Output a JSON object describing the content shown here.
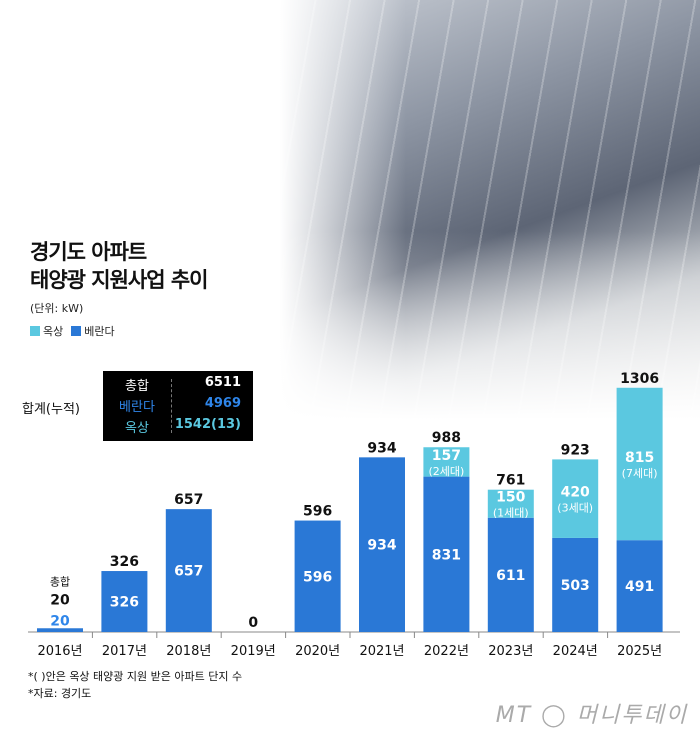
{
  "title_lines": [
    "경기도 아파트",
    "태양광 지원사업 추이"
  ],
  "unit": "(단위: kW)",
  "legend": [
    {
      "label": "옥상",
      "color": "#5bc8e0"
    },
    {
      "label": "베란다",
      "color": "#2a78d6"
    }
  ],
  "cumulative": {
    "label": "합계(누적)",
    "rows": [
      {
        "key": "총합",
        "value": "6511",
        "color": "#ffffff"
      },
      {
        "key": "베란다",
        "value": "4969",
        "color": "#2f86ea"
      },
      {
        "key": "옥상",
        "value": "1542(13)",
        "color": "#5bc8e0"
      }
    ]
  },
  "total_prefix_label": "총합",
  "chart_data": {
    "type": "bar",
    "stacked": true,
    "categories": [
      "2016년",
      "2017년",
      "2018년",
      "2019년",
      "2020년",
      "2021년",
      "2022년",
      "2023년",
      "2024년",
      "2025년"
    ],
    "series": [
      {
        "name": "베란다",
        "color": "#2a78d6",
        "values": [
          20,
          326,
          657,
          0,
          596,
          934,
          831,
          611,
          503,
          491
        ]
      },
      {
        "name": "옥상",
        "color": "#5bc8e0",
        "values": [
          0,
          0,
          0,
          0,
          0,
          0,
          157,
          150,
          420,
          815
        ]
      }
    ],
    "rooftop_complexes": [
      "",
      "",
      "",
      "",
      "",
      "",
      "(2세대)",
      "(1세대)",
      "(3세대)",
      "(7세대)"
    ],
    "totals": [
      20,
      326,
      657,
      0,
      596,
      934,
      988,
      761,
      923,
      1306
    ],
    "legend": "top-left",
    "grid": false
  },
  "notes": [
    "*( )안은 옥상 태양광 지원 받은 아파트 단지 수",
    "*자료: 경기도"
  ],
  "logo": "MT 머니투데이"
}
